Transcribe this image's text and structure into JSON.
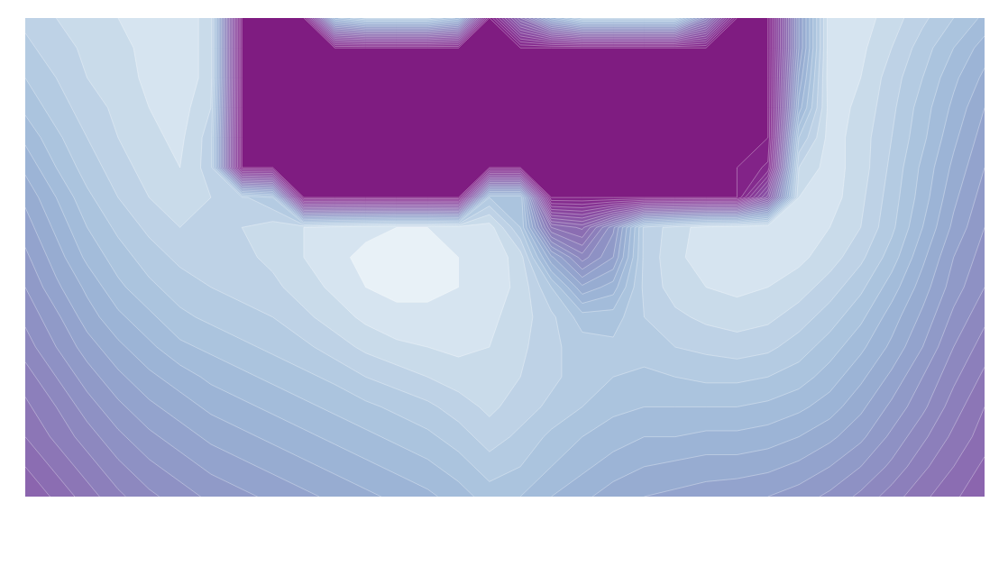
{
  "chart_data": {
    "type": "contour",
    "levels": [
      0,
      4,
      8,
      12,
      16,
      20,
      24,
      28,
      32,
      36,
      40,
      44,
      48,
      52,
      56,
      60,
      64,
      68,
      72,
      76,
      80,
      84,
      88,
      92,
      96,
      100
    ],
    "z": [
      [
        15,
        12,
        10,
        8,
        6,
        5,
        10,
        100,
        100,
        100,
        25,
        15,
        15,
        15,
        25,
        100,
        60,
        30,
        15,
        15,
        15,
        15,
        50,
        100,
        100,
        40,
        5,
        6,
        10,
        15,
        20,
        25
      ],
      [
        17,
        14,
        11,
        9,
        7,
        5,
        10,
        100,
        100,
        100,
        100,
        100,
        100,
        100,
        100,
        100,
        100,
        100,
        100,
        100,
        100,
        100,
        100,
        100,
        100,
        40,
        5,
        7,
        12,
        18,
        24,
        30
      ],
      [
        20,
        16,
        12,
        10,
        7,
        5,
        10,
        100,
        100,
        100,
        100,
        100,
        100,
        100,
        100,
        100,
        100,
        100,
        100,
        100,
        100,
        100,
        100,
        100,
        100,
        35,
        5,
        8,
        14,
        20,
        27,
        33
      ],
      [
        23,
        18,
        14,
        11,
        8,
        6,
        12,
        100,
        100,
        100,
        100,
        100,
        100,
        100,
        100,
        100,
        100,
        100,
        100,
        100,
        100,
        100,
        100,
        100,
        100,
        30,
        6,
        9,
        15,
        22,
        29,
        36
      ],
      [
        27,
        21,
        16,
        12,
        9,
        7,
        14,
        100,
        100,
        100,
        100,
        100,
        100,
        100,
        100,
        100,
        100,
        100,
        100,
        100,
        100,
        100,
        100,
        100,
        100,
        20,
        6,
        10,
        16,
        23,
        31,
        38
      ],
      [
        31,
        24,
        18,
        14,
        10,
        8,
        14,
        100,
        100,
        100,
        100,
        100,
        100,
        100,
        100,
        100,
        100,
        100,
        100,
        100,
        100,
        100,
        100,
        100,
        95,
        12,
        6,
        10,
        17,
        25,
        33,
        40
      ],
      [
        35,
        28,
        21,
        16,
        12,
        10,
        12,
        15,
        20,
        100,
        100,
        100,
        100,
        100,
        100,
        20,
        20,
        100,
        100,
        100,
        100,
        100,
        100,
        100,
        70,
        8,
        6,
        11,
        18,
        26,
        35,
        42
      ],
      [
        38,
        31,
        24,
        19,
        15,
        12,
        12,
        12,
        10,
        8,
        6,
        5,
        4,
        4,
        5,
        6,
        20,
        60,
        65,
        45,
        15,
        10,
        6,
        5,
        4,
        5,
        8,
        12,
        19,
        28,
        37,
        44
      ],
      [
        41,
        34,
        27,
        22,
        18,
        15,
        14,
        13,
        11,
        8,
        5,
        3,
        2,
        3,
        4,
        5,
        10,
        35,
        50,
        40,
        15,
        9,
        6,
        5,
        5,
        7,
        10,
        15,
        22,
        31,
        40,
        46
      ],
      [
        44,
        37,
        31,
        25,
        21,
        18,
        16,
        15,
        13,
        10,
        7,
        4,
        3,
        3,
        4,
        6,
        9,
        20,
        35,
        30,
        15,
        10,
        8,
        7,
        8,
        10,
        14,
        19,
        26,
        34,
        42,
        48
      ],
      [
        47,
        41,
        34,
        29,
        25,
        21,
        19,
        17,
        16,
        13,
        10,
        7,
        5,
        5,
        5,
        7,
        10,
        15,
        22,
        22,
        16,
        13,
        11,
        10,
        11,
        14,
        18,
        23,
        30,
        37,
        45,
        51
      ],
      [
        50,
        44,
        38,
        33,
        29,
        25,
        23,
        21,
        19,
        17,
        14,
        11,
        9,
        8,
        7,
        8,
        11,
        15,
        18,
        19,
        18,
        16,
        15,
        14,
        15,
        18,
        22,
        27,
        33,
        40,
        48,
        54
      ],
      [
        54,
        48,
        42,
        37,
        33,
        30,
        27,
        25,
        23,
        21,
        19,
        16,
        14,
        12,
        10,
        9,
        12,
        15,
        18,
        20,
        21,
        20,
        19,
        19,
        20,
        22,
        26,
        31,
        37,
        44,
        51,
        57
      ],
      [
        57,
        52,
        46,
        41,
        37,
        34,
        31,
        29,
        27,
        25,
        23,
        21,
        19,
        17,
        14,
        11,
        14,
        17,
        20,
        23,
        24,
        24,
        24,
        24,
        25,
        27,
        30,
        35,
        41,
        47,
        54,
        60
      ],
      [
        60,
        55,
        50,
        45,
        41,
        38,
        35,
        33,
        31,
        29,
        27,
        25,
        23,
        21,
        18,
        14,
        17,
        21,
        24,
        26,
        28,
        28,
        29,
        29,
        30,
        32,
        35,
        39,
        45,
        51,
        57,
        62
      ],
      [
        64,
        59,
        54,
        49,
        45,
        42,
        39,
        37,
        35,
        33,
        31,
        29,
        27,
        25,
        22,
        18,
        20,
        24,
        27,
        30,
        32,
        33,
        34,
        34,
        35,
        37,
        40,
        44,
        49,
        55,
        60,
        65
      ],
      [
        68,
        63,
        58,
        53,
        49,
        46,
        43,
        41,
        39,
        37,
        35,
        33,
        31,
        29,
        26,
        22,
        24,
        28,
        31,
        34,
        36,
        37,
        38,
        39,
        40,
        42,
        45,
        49,
        54,
        59,
        63,
        68
      ]
    ]
  }
}
